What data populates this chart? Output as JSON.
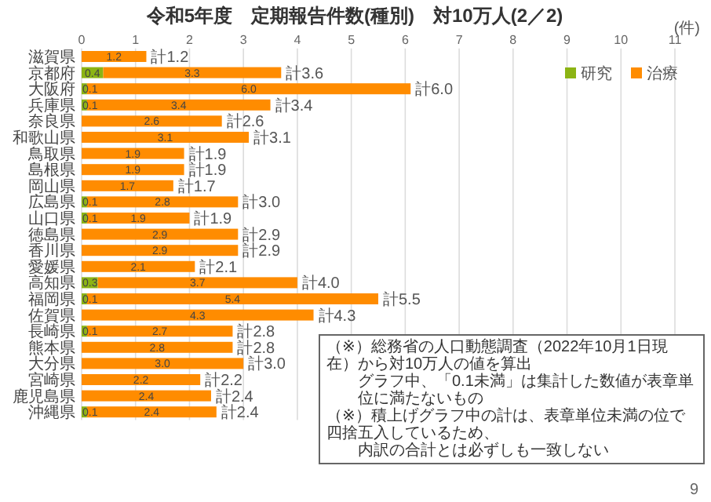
{
  "chart_data": {
    "type": "bar",
    "orientation": "horizontal",
    "stacked": true,
    "title": "令和5年度　定期報告件数(種別)　対10万人(2／2)",
    "xlabel": "(件)",
    "categories": [
      "滋賀県",
      "京都府",
      "大阪府",
      "兵庫県",
      "奈良県",
      "和歌山県",
      "鳥取県",
      "島根県",
      "岡山県",
      "広島県",
      "山口県",
      "徳島県",
      "香川県",
      "愛媛県",
      "高知県",
      "福岡県",
      "佐賀県",
      "長崎県",
      "熊本県",
      "大分県",
      "宮崎県",
      "鹿児島県",
      "沖縄県"
    ],
    "series": [
      {
        "name": "研究",
        "color": "#8cb414",
        "values": [
          null,
          0.4,
          0.1,
          0.1,
          null,
          null,
          null,
          null,
          null,
          0.1,
          0.1,
          null,
          null,
          null,
          0.3,
          0.1,
          null,
          0.1,
          null,
          null,
          null,
          null,
          0.1
        ],
        "value_labels": [
          null,
          "0.4",
          "0.1",
          "0.1",
          null,
          null,
          null,
          null,
          null,
          "0.1",
          "0.1",
          null,
          null,
          null,
          "0.3",
          "0.1",
          null,
          "0.1",
          null,
          null,
          null,
          null,
          "0.1"
        ]
      },
      {
        "name": "治療",
        "color": "#ff8c00",
        "values": [
          1.2,
          3.3,
          6.0,
          3.4,
          2.6,
          3.1,
          1.9,
          1.9,
          1.7,
          2.8,
          1.9,
          2.9,
          2.9,
          2.1,
          3.7,
          5.4,
          4.3,
          2.7,
          2.8,
          3.0,
          2.2,
          2.4,
          2.4
        ],
        "value_labels": [
          "1.2",
          "3.3",
          "6.0",
          "3.4",
          "2.6",
          "3.1",
          "1.9",
          "1.9",
          "1.7",
          "2.8",
          "1.9",
          "2.9",
          "2.9",
          "2.1",
          "3.7",
          "5.4",
          "4.3",
          "2.7",
          "2.8",
          "3.0",
          "2.2",
          "2.4",
          "2.4"
        ]
      }
    ],
    "totals": [
      "計1.2",
      "計3.6",
      "計6.0",
      "計3.4",
      "計2.6",
      "計3.1",
      "計1.9",
      "計1.9",
      "計1.7",
      "計3.0",
      "計1.9",
      "計2.9",
      "計2.9",
      "計2.1",
      "計4.0",
      "計5.5",
      "計4.3",
      "計2.8",
      "計2.8",
      "計3.0",
      "計2.2",
      "計2.4",
      "計2.4"
    ],
    "xlim": [
      0,
      11
    ],
    "xticks": [
      0,
      1,
      2,
      3,
      4,
      5,
      6,
      7,
      8,
      9,
      10,
      11
    ],
    "grid": "x",
    "legend": "top right",
    "annotations": [
      "（※）総務省の人口動態調査（2022年10月1日現在）から対10万人の値を算出",
      "グラフ中、「0.1未満」は集計した数値が表章単位に満たないもの",
      "（※）積上げグラフ中の計は、表章単位未満の位で四捨五入しているため、",
      "内訳の合計とは必ずしも一致しない",
      "9"
    ]
  }
}
